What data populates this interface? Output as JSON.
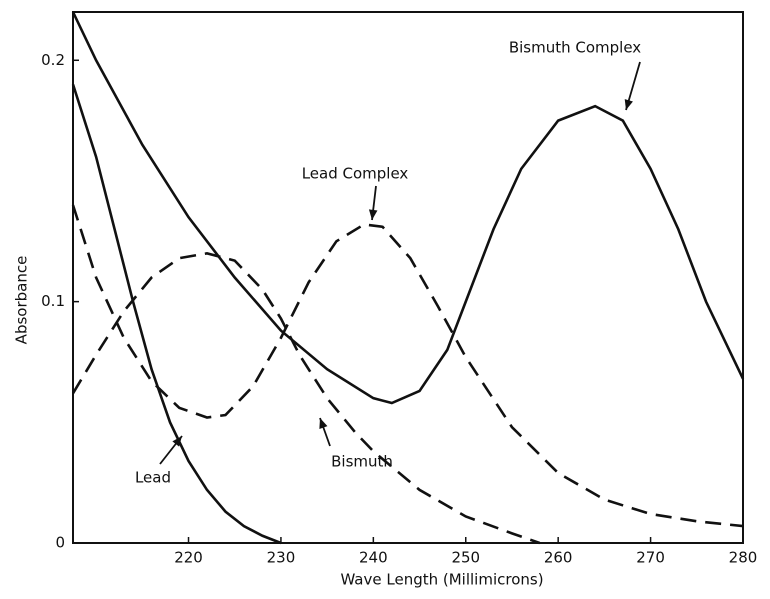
{
  "chart_data": {
    "type": "line",
    "xlabel": "Wave Length (Millimicrons)",
    "ylabel": "Absorbance",
    "xlim": [
      207.5,
      280
    ],
    "xticks": [
      220,
      230,
      240,
      250,
      260,
      270,
      280
    ],
    "ylim": [
      0,
      0.22
    ],
    "yticks": [
      0,
      0.1,
      0.2
    ],
    "grid": false,
    "annotations": [
      "Bismuth Complex",
      "Lead Complex",
      "Lead",
      "Bismuth"
    ],
    "series": [
      {
        "name": "Lead",
        "color": "#111111",
        "style": "solid",
        "x": [
          207.5,
          210,
          212,
          214,
          216,
          218,
          220,
          222,
          224,
          226,
          228,
          230
        ],
        "values": [
          0.19,
          0.16,
          0.13,
          0.1,
          0.072,
          0.05,
          0.034,
          0.022,
          0.013,
          0.007,
          0.003,
          0
        ]
      },
      {
        "name": "Bismuth",
        "color": "#111111",
        "style": "dashed",
        "x": [
          207.5,
          210,
          213,
          216,
          219,
          222,
          225,
          228,
          230,
          232,
          235,
          238,
          240,
          245,
          250,
          255,
          258
        ],
        "values": [
          0.062,
          0.078,
          0.096,
          0.11,
          0.118,
          0.12,
          0.117,
          0.105,
          0.093,
          0.078,
          0.06,
          0.046,
          0.038,
          0.022,
          0.011,
          0.004,
          0
        ]
      },
      {
        "name": "Lead Complex",
        "color": "#111111",
        "style": "dashed",
        "x": [
          207.5,
          210,
          213,
          216,
          219,
          222,
          224,
          227,
          230,
          233,
          236,
          239,
          241,
          244,
          247,
          250,
          255,
          260,
          265,
          270,
          275,
          280
        ],
        "values": [
          0.14,
          0.11,
          0.085,
          0.067,
          0.056,
          0.052,
          0.053,
          0.065,
          0.085,
          0.108,
          0.125,
          0.132,
          0.131,
          0.118,
          0.098,
          0.077,
          0.048,
          0.029,
          0.018,
          0.012,
          0.009,
          0.007
        ]
      },
      {
        "name": "Bismuth Complex",
        "color": "#111111",
        "style": "solid",
        "x": [
          207.5,
          210,
          215,
          220,
          225,
          230,
          235,
          240,
          242,
          245,
          248,
          250,
          253,
          256,
          260,
          264,
          267,
          270,
          273,
          276,
          280
        ],
        "values": [
          0.22,
          0.2,
          0.165,
          0.135,
          0.11,
          0.088,
          0.072,
          0.06,
          0.058,
          0.063,
          0.08,
          0.1,
          0.13,
          0.155,
          0.175,
          0.181,
          0.175,
          0.155,
          0.13,
          0.1,
          0.068
        ]
      }
    ]
  }
}
